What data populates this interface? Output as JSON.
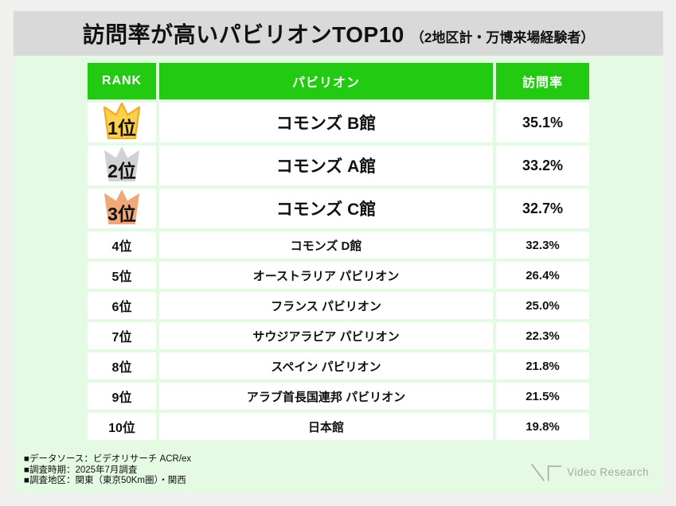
{
  "title": {
    "main": "訪問率が高いパビリオンTOP10",
    "sub": "（2地区計・万博来場経験者）"
  },
  "table": {
    "headers": {
      "rank": "RANK",
      "pavilion": "パビリオン",
      "rate": "訪問率"
    },
    "rows": [
      {
        "rank": "1位",
        "pavilion": "コモンズ B館",
        "rate": "35.1%",
        "crown": "gold"
      },
      {
        "rank": "2位",
        "pavilion": "コモンズ A館",
        "rate": "33.2%",
        "crown": "silver"
      },
      {
        "rank": "3位",
        "pavilion": "コモンズ C館",
        "rate": "32.7%",
        "crown": "bronze"
      },
      {
        "rank": "4位",
        "pavilion": "コモンズ D館",
        "rate": "32.3%",
        "crown": null
      },
      {
        "rank": "5位",
        "pavilion": "オーストラリア パビリオン",
        "rate": "26.4%",
        "crown": null
      },
      {
        "rank": "6位",
        "pavilion": "フランス パビリオン",
        "rate": "25.0%",
        "crown": null
      },
      {
        "rank": "7位",
        "pavilion": "サウジアラビア パビリオン",
        "rate": "22.3%",
        "crown": null
      },
      {
        "rank": "8位",
        "pavilion": "スペイン パビリオン",
        "rate": "21.8%",
        "crown": null
      },
      {
        "rank": "9位",
        "pavilion": "アラブ首長国連邦 パビリオン",
        "rate": "21.5%",
        "crown": null
      },
      {
        "rank": "10位",
        "pavilion": "日本館",
        "rate": "19.8%",
        "crown": null
      }
    ]
  },
  "footnotes": [
    "■データソース：ビデオリサーチ ACR/ex",
    "■調査時期：2025年7月調査",
    "■調査地区：関東（東京50Km圏）・関西"
  ],
  "logo": {
    "text": "Video Research"
  },
  "colors": {
    "accent_green": "#22cb12",
    "bg_green": "#e5fae3",
    "titlebar_gray": "#d9d9d9",
    "page_bg": "#f0f0ef",
    "crown_gold": "#fcd04f",
    "crown_gold_stroke": "#f0ae2f",
    "crown_silver": "#d2d2d2",
    "crown_bronze": "#f0a878",
    "logo_gray": "#a3aba3"
  },
  "chart_data": {
    "type": "table",
    "title": "訪問率が高いパビリオンTOP10（2地区計・万博来場経験者）",
    "columns": [
      "RANK",
      "パビリオン",
      "訪問率"
    ],
    "categories": [
      "コモンズ B館",
      "コモンズ A館",
      "コモンズ C館",
      "コモンズ D館",
      "オーストラリア パビリオン",
      "フランス パビリオン",
      "サウジアラビア パビリオン",
      "スペイン パビリオン",
      "アラブ首長国連邦 パビリオン",
      "日本館"
    ],
    "values": [
      35.1,
      33.2,
      32.7,
      32.3,
      26.4,
      25.0,
      22.3,
      21.8,
      21.5,
      19.8
    ],
    "unit": "%",
    "source_notes": [
      "■データソース：ビデオリサーチ ACR/ex",
      "■調査時期：2025年7月調査",
      "■調査地区：関東（東京50Km圏）・関西"
    ]
  }
}
